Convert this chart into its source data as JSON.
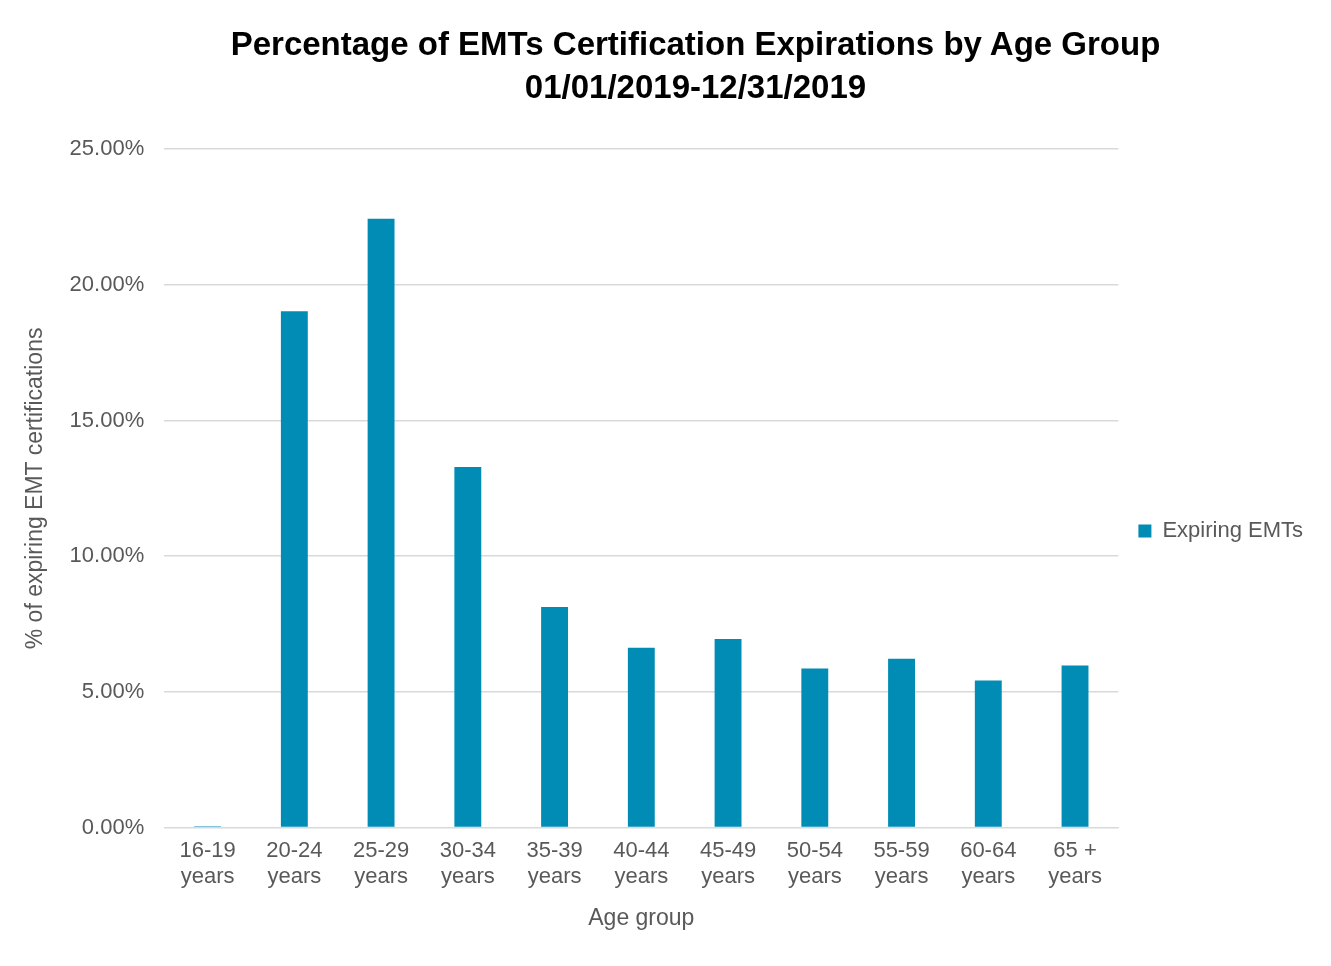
{
  "chart_data": {
    "type": "bar",
    "title": "Percentage of EMTs Certification Expirations by Age Group 01/01/2019-12/31/2019",
    "xlabel": "Age group",
    "ylabel": "% of expiring EMT certifications",
    "categories": [
      "16-19 years",
      "20-24 years",
      "25-29 years",
      "30-34 years",
      "35-39 years",
      "40-44 years",
      "45-49 years",
      "50-54 years",
      "55-59 years",
      "60-64 years",
      "65 + years"
    ],
    "series": [
      {
        "name": "Expiring EMTs",
        "color": "#008cb4",
        "values": [
          0.05,
          19.03,
          22.44,
          13.29,
          8.13,
          6.63,
          6.95,
          5.86,
          6.22,
          5.42,
          5.97
        ]
      }
    ],
    "ylim": [
      0,
      25
    ],
    "yticks": [
      {
        "value": 0,
        "label": "0.00%"
      },
      {
        "value": 5,
        "label": "5.00%"
      },
      {
        "value": 10,
        "label": "10.00%"
      },
      {
        "value": 15,
        "label": "15.00%"
      },
      {
        "value": 20,
        "label": "20.00%"
      },
      {
        "value": 25,
        "label": "25.00%"
      }
    ],
    "grid": "y",
    "legend": "right"
  }
}
